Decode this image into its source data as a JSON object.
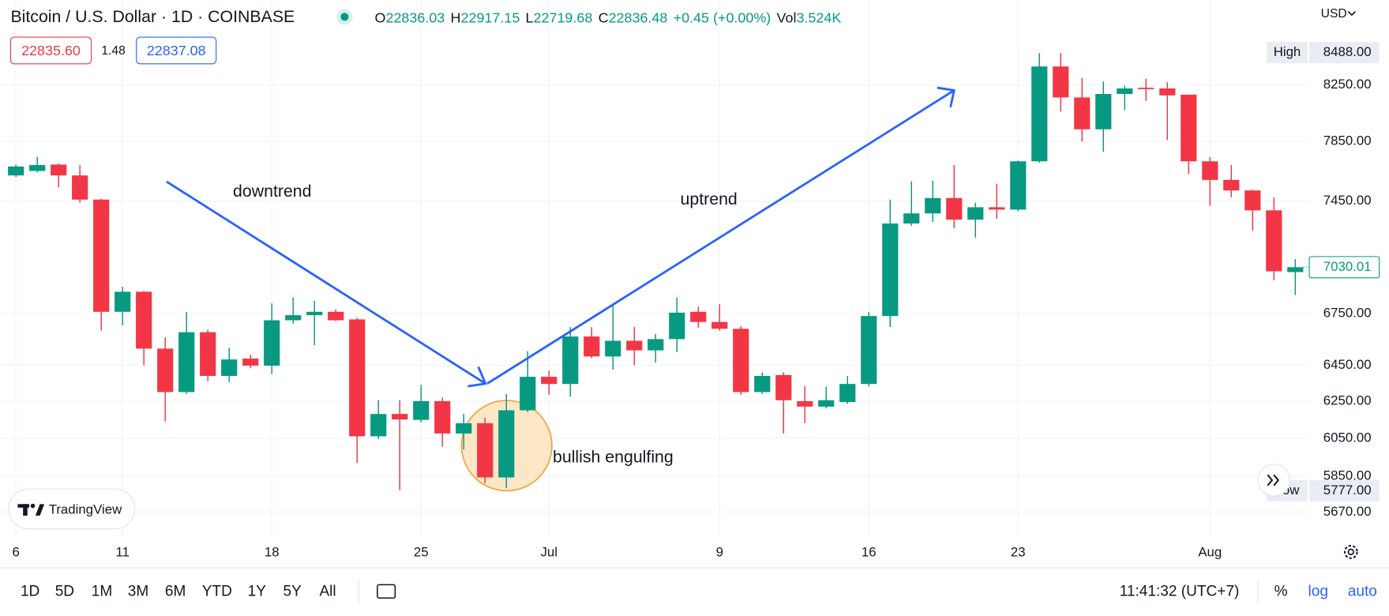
{
  "header": {
    "symbol": "Bitcoin / U.S. Dollar · 1D · COINBASE",
    "ohlc": [
      {
        "label": "O",
        "value": "22836.03"
      },
      {
        "label": "H",
        "value": "22917.15"
      },
      {
        "label": "L",
        "value": "22719.68"
      },
      {
        "label": "C",
        "value": "22836.48"
      }
    ],
    "change": "+0.45 (+0.00%)",
    "volume": {
      "label": "Vol",
      "value": "3.524K"
    },
    "bid": "22835.60",
    "spread": "1.48",
    "ask": "22837.08",
    "currency": "USD"
  },
  "chart_data": {
    "type": "candlestick",
    "log": true,
    "grid": true,
    "up_color": "#089981",
    "down_color": "#f23645",
    "categories": [
      "6",
      null,
      null,
      null,
      null,
      "11",
      null,
      null,
      null,
      null,
      null,
      null,
      "18",
      null,
      null,
      null,
      null,
      null,
      null,
      "25",
      null,
      null,
      null,
      null,
      null,
      "Jul",
      null,
      null,
      null,
      null,
      null,
      null,
      null,
      "9",
      null,
      null,
      null,
      null,
      null,
      null,
      "16",
      null,
      null,
      null,
      null,
      null,
      null,
      "23",
      null,
      null,
      null,
      null,
      null,
      null,
      null,
      null,
      "Aug",
      null,
      null,
      null,
      null
    ],
    "open": [
      7620,
      7650,
      7693,
      7620,
      7460,
      6760,
      6880,
      6545,
      6300,
      6640,
      6390,
      6488,
      6448,
      6710,
      6740,
      6760,
      6715,
      6060,
      6180,
      6148,
      6250,
      6075,
      6130,
      5845,
      6200,
      6385,
      6345,
      6615,
      6500,
      6590,
      6535,
      6600,
      6760,
      6700,
      6660,
      6300,
      6395,
      6250,
      6220,
      6245,
      6345,
      6735,
      7305,
      7370,
      7470,
      7330,
      7410,
      7395,
      7715,
      8385,
      8160,
      7935,
      8185,
      8230,
      8225,
      8180,
      7715,
      7590,
      7520,
      7390,
      7000
    ],
    "high": [
      7693,
      7745,
      7700,
      7690,
      7465,
      6910,
      6885,
      6610,
      6760,
      6655,
      6550,
      6510,
      6810,
      6845,
      6825,
      6775,
      6725,
      6255,
      6255,
      6340,
      6270,
      6180,
      6160,
      6290,
      6530,
      6420,
      6670,
      6670,
      6800,
      6670,
      6630,
      6845,
      6790,
      6805,
      6675,
      6410,
      6410,
      6333,
      6330,
      6390,
      6760,
      7460,
      7580,
      7585,
      7690,
      7440,
      7565,
      7720,
      8485,
      8485,
      8300,
      8275,
      8245,
      8295,
      8270,
      8180,
      7745,
      7690,
      7525,
      7475,
      7080
    ],
    "low": [
      7610,
      7640,
      7540,
      7440,
      6650,
      6680,
      6450,
      6140,
      6290,
      6360,
      6355,
      6433,
      6400,
      6690,
      6565,
      6705,
      5920,
      6045,
      5780,
      6135,
      6005,
      5990,
      5815,
      5790,
      6190,
      6285,
      6275,
      6490,
      6425,
      6450,
      6465,
      6525,
      6665,
      6650,
      6285,
      6290,
      6075,
      6130,
      6210,
      6235,
      6330,
      6670,
      7290,
      7315,
      7275,
      7215,
      7335,
      7385,
      7705,
      8060,
      7850,
      7780,
      8070,
      8135,
      7860,
      7630,
      7420,
      7475,
      7260,
      6950,
      6860
    ],
    "close": [
      7680,
      7690,
      7620,
      7460,
      6760,
      6880,
      6545,
      6300,
      6640,
      6390,
      6483,
      6448,
      6710,
      6740,
      6760,
      6710,
      6060,
      6180,
      6150,
      6250,
      6075,
      6130,
      5845,
      6200,
      6385,
      6345,
      6615,
      6500,
      6590,
      6535,
      6600,
      6755,
      6700,
      6660,
      6300,
      6390,
      6255,
      6220,
      6255,
      6345,
      6735,
      7305,
      7370,
      7470,
      7330,
      7410,
      7395,
      7715,
      8385,
      8160,
      7935,
      8185,
      8225,
      8220,
      8175,
      7715,
      7590,
      7520,
      7390,
      7005,
      7030.01
    ],
    "ylim": [
      5552,
      8889
    ],
    "yticks": [
      {
        "value": 5670,
        "label": "5670.00"
      },
      {
        "value": 5850,
        "label": "5850.00"
      },
      {
        "value": 6050,
        "label": "6050.00"
      },
      {
        "value": 6250,
        "label": "6250.00"
      },
      {
        "value": 6450,
        "label": "6450.00"
      },
      {
        "value": 6750,
        "label": "6750.00"
      },
      {
        "value": 7450,
        "label": "7450.00"
      },
      {
        "value": 7850,
        "label": "7850.00"
      },
      {
        "value": 8250,
        "label": "8250.00"
      }
    ],
    "high_marker": {
      "label": "High",
      "price": {
        "value": 8488,
        "label": "8488.00"
      }
    },
    "low_marker": {
      "label": "Low",
      "price": {
        "value": 5777,
        "label": "5777.00"
      }
    },
    "last_price": {
      "value": 7030.01,
      "label": "7030.01"
    },
    "annotations": [
      "downtrend",
      "uptrend",
      "bullish engulfing"
    ]
  },
  "logo": "TradingView",
  "toolbar": {
    "ranges": [
      "1D",
      "5D",
      "1M",
      "3M",
      "6M",
      "YTD",
      "1Y",
      "5Y",
      "All"
    ],
    "time": "11:41:32 (UTC+7)",
    "percent": "%",
    "log": "log",
    "auto": "auto"
  }
}
